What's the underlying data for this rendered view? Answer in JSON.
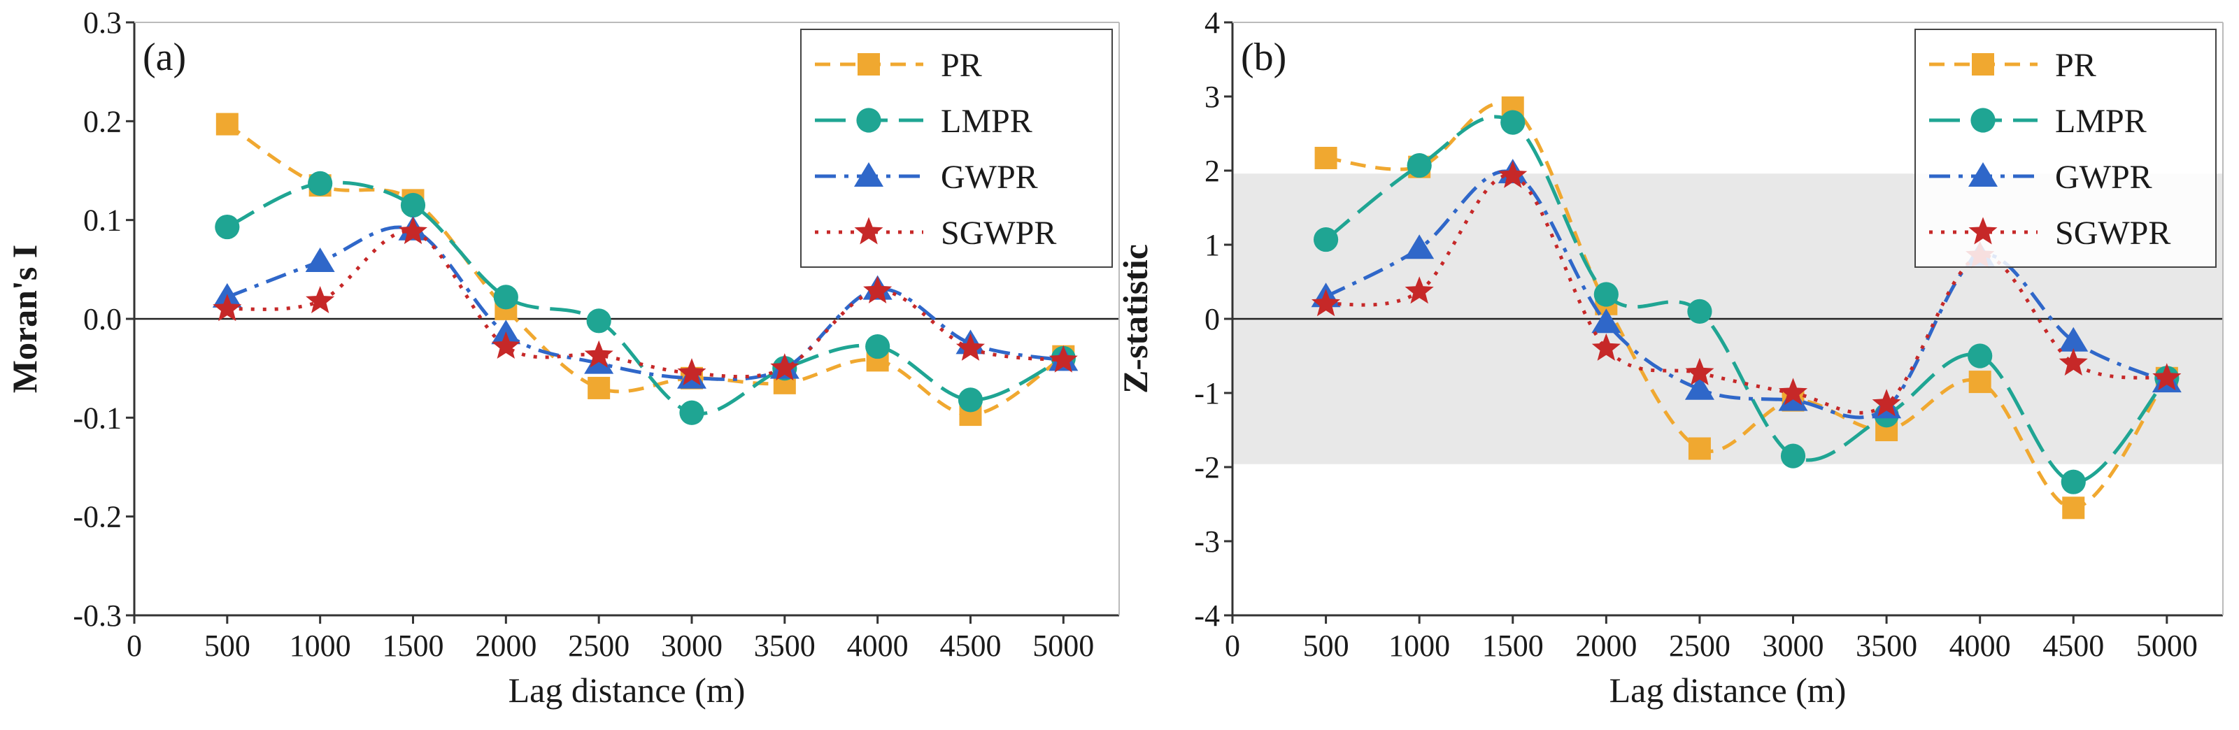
{
  "colors": {
    "PR": "#f0a830",
    "LMPR": "#1fa593",
    "GWPR": "#2f67c9",
    "SGWPR": "#c62828",
    "band": "#e8e8e8",
    "axis": "#333333"
  },
  "chart_data": [
    {
      "type": "line",
      "panel": "(a)",
      "xlabel": "Lag distance (m)",
      "ylabel": "Moran's I",
      "xlim": [
        0,
        5300
      ],
      "ylim": [
        -0.3,
        0.3
      ],
      "xticks": [
        0,
        500,
        1000,
        1500,
        2000,
        2500,
        3000,
        3500,
        4000,
        4500,
        5000
      ],
      "xtick_labels": [
        "0",
        "500",
        "1000",
        "1500",
        "2000",
        "2500",
        "3000",
        "3500",
        "4000",
        "4500",
        "5000"
      ],
      "yticks": [
        -0.3,
        -0.2,
        -0.1,
        0.0,
        0.1,
        0.2,
        0.3
      ],
      "ytick_labels": [
        "-0.3",
        "-0.2",
        "-0.1",
        "0.0",
        "0.1",
        "0.2",
        "0.3"
      ],
      "zero_line": true,
      "legend": "top-right",
      "x": [
        500,
        1000,
        1500,
        2000,
        2500,
        3000,
        3500,
        4000,
        4500,
        5000
      ],
      "series": [
        {
          "name": "PR",
          "marker": "square",
          "dash": "dash",
          "values": [
            0.197,
            0.135,
            0.12,
            0.01,
            -0.07,
            -0.06,
            -0.065,
            -0.042,
            -0.097,
            -0.038
          ]
        },
        {
          "name": "LMPR",
          "marker": "circle",
          "dash": "longdash",
          "values": [
            0.093,
            0.137,
            0.115,
            0.022,
            -0.002,
            -0.095,
            -0.05,
            -0.028,
            -0.082,
            -0.04
          ]
        },
        {
          "name": "GWPR",
          "marker": "triangle",
          "dash": "dashdot",
          "values": [
            0.022,
            0.058,
            0.09,
            -0.015,
            -0.045,
            -0.06,
            -0.05,
            0.03,
            -0.025,
            -0.042
          ]
        },
        {
          "name": "SGWPR",
          "marker": "star",
          "dash": "dot",
          "values": [
            0.01,
            0.018,
            0.088,
            -0.028,
            -0.037,
            -0.055,
            -0.05,
            0.028,
            -0.03,
            -0.042
          ]
        }
      ]
    },
    {
      "type": "line",
      "panel": "(b)",
      "xlabel": "Lag distance (m)",
      "ylabel": "Z-statistic",
      "xlim": [
        0,
        5300
      ],
      "ylim": [
        -4,
        4
      ],
      "xticks": [
        0,
        500,
        1000,
        1500,
        2000,
        2500,
        3000,
        3500,
        4000,
        4500,
        5000
      ],
      "xtick_labels": [
        "0",
        "500",
        "1000",
        "1500",
        "2000",
        "2500",
        "3000",
        "3500",
        "4000",
        "4500",
        "5000"
      ],
      "yticks": [
        -4,
        -3,
        -2,
        -1,
        0,
        1,
        2,
        3,
        4
      ],
      "ytick_labels": [
        "-4",
        "-3",
        "-2",
        "-1",
        "0",
        "1",
        "2",
        "3",
        "4"
      ],
      "zero_line": true,
      "significance_band": [
        -1.96,
        1.96
      ],
      "legend": "top-right",
      "x": [
        500,
        1000,
        1500,
        2000,
        2500,
        3000,
        3500,
        4000,
        4500,
        5000
      ],
      "series": [
        {
          "name": "PR",
          "marker": "square",
          "dash": "dash",
          "values": [
            2.17,
            2.05,
            2.85,
            0.2,
            -1.75,
            -1.1,
            -1.5,
            -0.85,
            -2.55,
            -0.8
          ]
        },
        {
          "name": "LMPR",
          "marker": "circle",
          "dash": "longdash",
          "values": [
            1.07,
            2.07,
            2.65,
            0.33,
            0.1,
            -1.85,
            -1.3,
            -0.5,
            -2.2,
            -0.8
          ]
        },
        {
          "name": "GWPR",
          "marker": "triangle",
          "dash": "dashdot",
          "values": [
            0.3,
            0.95,
            1.97,
            -0.05,
            -0.95,
            -1.1,
            -1.2,
            0.85,
            -0.3,
            -0.85
          ]
        },
        {
          "name": "SGWPR",
          "marker": "star",
          "dash": "dot",
          "values": [
            0.2,
            0.37,
            1.93,
            -0.4,
            -0.73,
            -1.0,
            -1.15,
            0.85,
            -0.6,
            -0.8
          ]
        }
      ]
    }
  ]
}
